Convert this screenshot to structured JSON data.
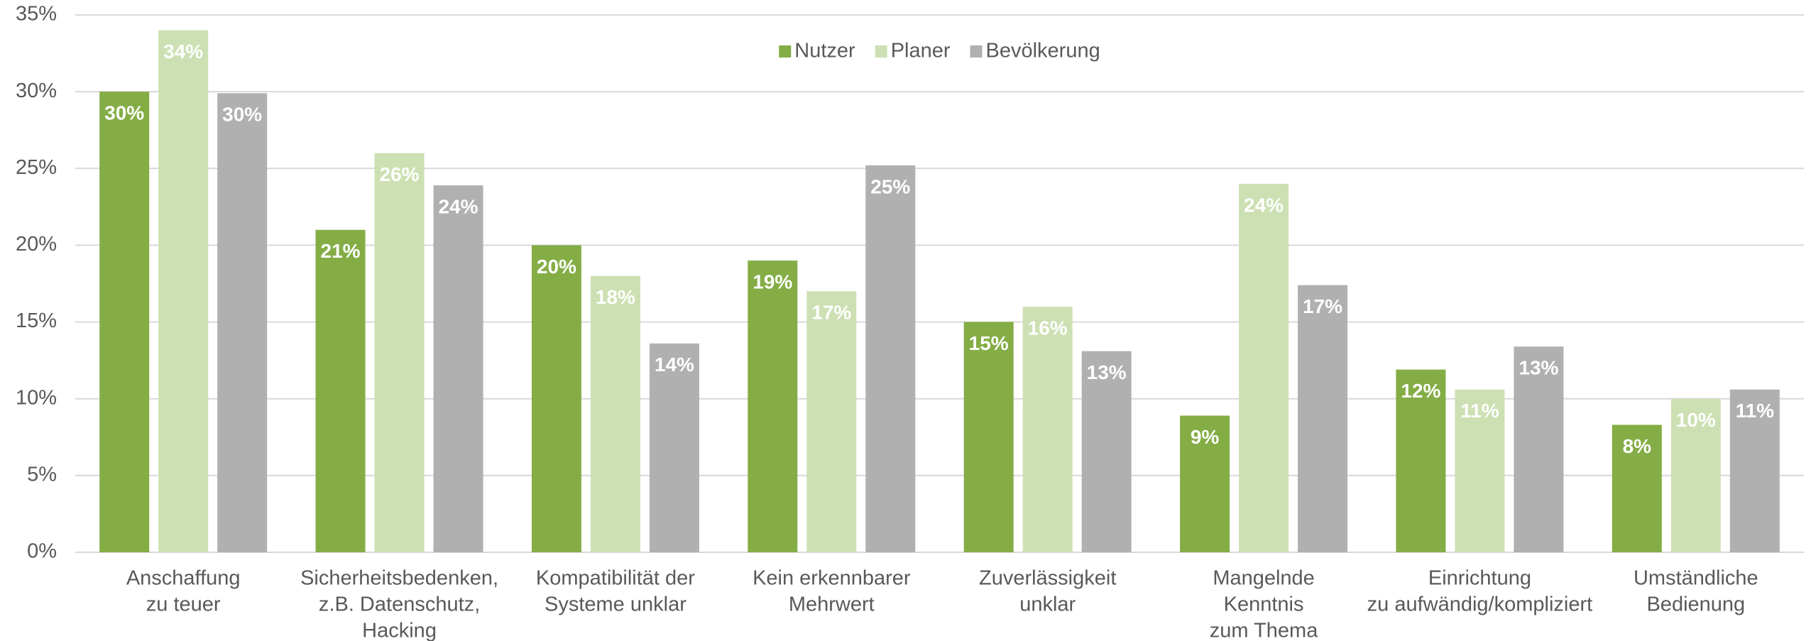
{
  "chart_data": {
    "type": "bar",
    "categories": [
      [
        "Anschaffung",
        "zu teuer"
      ],
      [
        "Sicherheitsbedenken,",
        "z.B. Datenschutz,",
        "Hacking"
      ],
      [
        "Kompatibilität der",
        "Systeme unklar"
      ],
      [
        "Kein erkennbarer",
        "Mehrwert"
      ],
      [
        "Zuverlässigkeit",
        "unklar"
      ],
      [
        "Mangelnde",
        "Kenntnis",
        "zum Thema"
      ],
      [
        "Einrichtung",
        "zu aufwändig/kompliziert"
      ],
      [
        "Umständliche",
        "Bedienung"
      ]
    ],
    "series": [
      {
        "name": "Nutzer",
        "color": "#84ad46",
        "values": [
          30,
          21,
          20,
          19,
          15,
          8.9,
          11.9,
          8.3
        ],
        "value_labels": [
          "30%",
          "21%",
          "20%",
          "19%",
          "15%",
          "9%",
          "12%",
          "8%"
        ]
      },
      {
        "name": "Planer",
        "color": "#cde0b3",
        "values": [
          34,
          26,
          18,
          17,
          16,
          24,
          10.6,
          10
        ],
        "value_labels": [
          "34%",
          "26%",
          "18%",
          "17%",
          "16%",
          "24%",
          "11%",
          "10%"
        ]
      },
      {
        "name": "Bevölkerung",
        "color": "#b0b0b0",
        "values": [
          29.9,
          23.9,
          13.6,
          25.2,
          13.1,
          17.4,
          13.4,
          10.6
        ],
        "value_labels": [
          "30%",
          "24%",
          "14%",
          "25%",
          "13%",
          "17%",
          "13%",
          "11%"
        ]
      }
    ],
    "ylim": [
      0,
      35
    ],
    "yticks": [
      {
        "value": 0,
        "label": "0%"
      },
      {
        "value": 5,
        "label": "5%"
      },
      {
        "value": 10,
        "label": "10%"
      },
      {
        "value": 15,
        "label": "15%"
      },
      {
        "value": 20,
        "label": "20%"
      },
      {
        "value": 25,
        "label": "25%"
      },
      {
        "value": 30,
        "label": "30%"
      },
      {
        "value": 35,
        "label": "35%"
      }
    ],
    "grid": true,
    "legend": "top"
  }
}
